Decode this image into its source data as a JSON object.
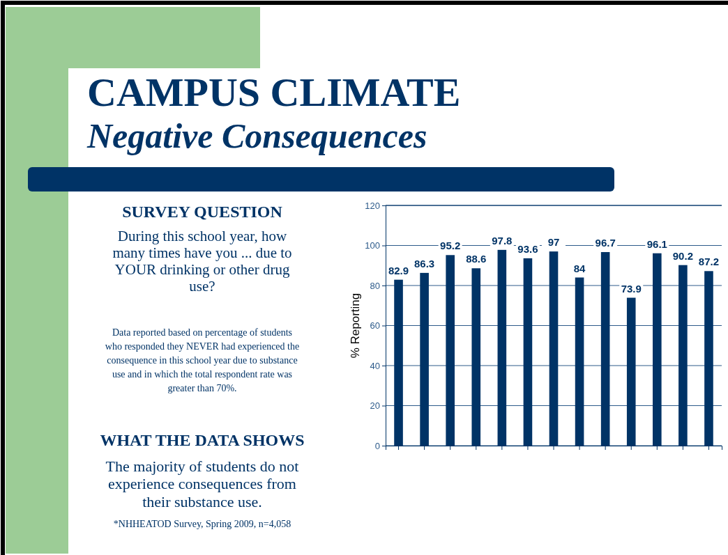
{
  "chart_data": {
    "type": "bar",
    "title": "CAMPUS CLIMATE",
    "subtitle": "Negative Consequences",
    "ylabel": "% Reporting",
    "annotations": [
      "SURVEY QUESTION",
      "During this school year, how many times have you ... due to YOUR drinking or other drug use?",
      "Data reported based on percentage of students who responded they NEVER had experienced the consequence in this school year due to substance use and in which the total respondent rate was greater than 70%.",
      "WHAT THE DATA SHOWS",
      "The majority of students do not experience consequences from their substance use.",
      "*NHHEATOD Survey, Spring 2009, n=4,058"
    ],
    "categories": [
      null,
      null,
      null,
      null,
      null,
      null,
      null,
      null,
      null,
      null,
      null,
      null,
      null
    ],
    "values": [
      82.9,
      86.3,
      95.2,
      88.6,
      97.8,
      93.6,
      97,
      84,
      96.7,
      73.9,
      96.1,
      90.2,
      87.2
    ],
    "color": "#003366",
    "data_labels": true,
    "ylim": [
      0,
      120
    ],
    "yticks": [
      0,
      20,
      40,
      60,
      80,
      100,
      120
    ],
    "grid": "y"
  }
}
